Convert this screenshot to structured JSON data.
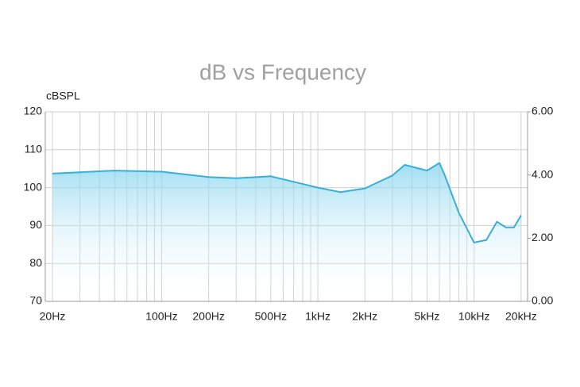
{
  "chart_data": {
    "type": "line",
    "title": "dB vs Frequency",
    "y_label": "cBSPL",
    "x": [
      20,
      50,
      100,
      200,
      300,
      500,
      1000,
      1400,
      2000,
      3000,
      3600,
      5000,
      6000,
      6500,
      8000,
      10000,
      12000,
      14000,
      16000,
      18000,
      20000
    ],
    "series": [
      {
        "color": "#3aaed8",
        "values": [
          103.7,
          104.5,
          104.2,
          102.8,
          102.5,
          103,
          100,
          98.8,
          99.8,
          103.2,
          106,
          104.5,
          106.5,
          103.2,
          93.3,
          85.5,
          86.2,
          91,
          89.5,
          89.5,
          92.7
        ]
      }
    ],
    "xlim": [
      18,
      22000
    ],
    "xscale": "log",
    "xticks": [
      {
        "value": 20,
        "label": "20Hz"
      },
      {
        "value": 100,
        "label": "100Hz"
      },
      {
        "value": 200,
        "label": "200Hz"
      },
      {
        "value": 500,
        "label": "500Hz"
      },
      {
        "value": 1000,
        "label": "1kHz"
      },
      {
        "value": 2000,
        "label": "2kHz"
      },
      {
        "value": 5000,
        "label": "5kHz"
      },
      {
        "value": 10000,
        "label": "10kHz"
      },
      {
        "value": 20000,
        "label": "20kHz"
      }
    ],
    "x_minor_ticks": [
      30,
      40,
      50,
      60,
      70,
      80,
      90,
      300,
      400,
      600,
      700,
      800,
      900,
      3000,
      4000,
      6000,
      7000,
      8000,
      9000
    ],
    "ylim": [
      70,
      120
    ],
    "yticks": [
      70,
      80,
      90,
      100,
      110,
      120
    ],
    "y2lim": [
      0,
      6
    ],
    "y2ticks": [
      {
        "value": 0,
        "label": "0.00"
      },
      {
        "value": 2,
        "label": "2.00"
      },
      {
        "value": 4,
        "label": "4.00"
      },
      {
        "value": 6,
        "label": "6.00"
      }
    ],
    "grid": true
  }
}
